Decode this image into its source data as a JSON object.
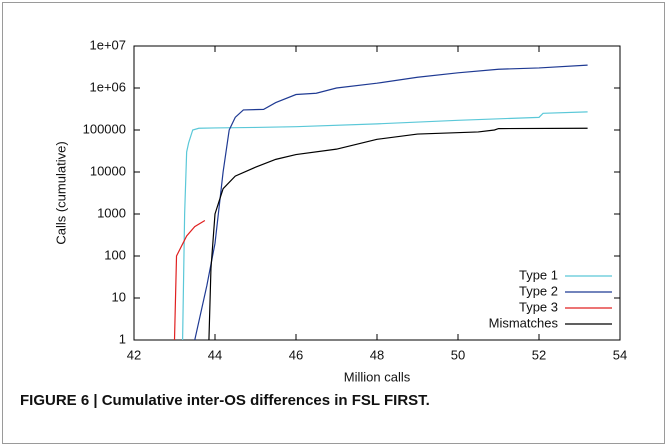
{
  "chart_data": {
    "type": "line",
    "caption": "FIGURE 6 | Cumulative inter-OS differences in FSL FIRST.",
    "x_label": "Million calls",
    "y_label": "Calls (cumulative)",
    "xlim": [
      42,
      54
    ],
    "xticks": [
      42,
      44,
      46,
      48,
      50,
      52,
      54
    ],
    "ylim": [
      1,
      10000000
    ],
    "log_y": true,
    "yticks": [
      1,
      10,
      100,
      1000,
      10000,
      100000,
      {
        "value": 1000000,
        "label": "1e+06"
      },
      {
        "value": 10000000,
        "label": "1e+07"
      }
    ],
    "legend": "bottom-right",
    "series": [
      {
        "name": "Type 1",
        "color": "#5bc8d8",
        "x": [
          43.2,
          43.25,
          43.3,
          43.35,
          43.45,
          43.6,
          44,
          45,
          46,
          48,
          50,
          52,
          52.1,
          53.2
        ],
        "values": [
          1,
          1000,
          30000,
          50000,
          100000,
          110000,
          112000,
          115000,
          120000,
          140000,
          170000,
          200000,
          250000,
          270000
        ]
      },
      {
        "name": "Type 2",
        "color": "#1f3a93",
        "x": [
          43.5,
          43.8,
          44,
          44.2,
          44.35,
          44.5,
          44.7,
          45.2,
          45.5,
          46,
          46.5,
          47,
          48,
          49,
          50,
          51,
          52,
          53.2
        ],
        "values": [
          1,
          20,
          200,
          10000,
          100000,
          200000,
          300000,
          310000,
          450000,
          700000,
          750000,
          1000000,
          1300000,
          1800000,
          2300000,
          2800000,
          3000000,
          3500000
        ]
      },
      {
        "name": "Type 3",
        "color": "#e02020",
        "x": [
          43,
          43.05,
          43.3,
          43.5,
          43.75
        ],
        "values": [
          1,
          100,
          300,
          500,
          700
        ]
      },
      {
        "name": "Mismatches",
        "color": "#000000",
        "x": [
          43.85,
          43.9,
          44,
          44.2,
          44.5,
          45,
          45.5,
          46,
          47,
          48,
          49,
          50.5,
          50.9,
          51,
          53.2
        ],
        "values": [
          1,
          50,
          1000,
          4000,
          8000,
          13000,
          20000,
          26000,
          35000,
          60000,
          80000,
          90000,
          100000,
          108000,
          110000
        ]
      }
    ]
  }
}
